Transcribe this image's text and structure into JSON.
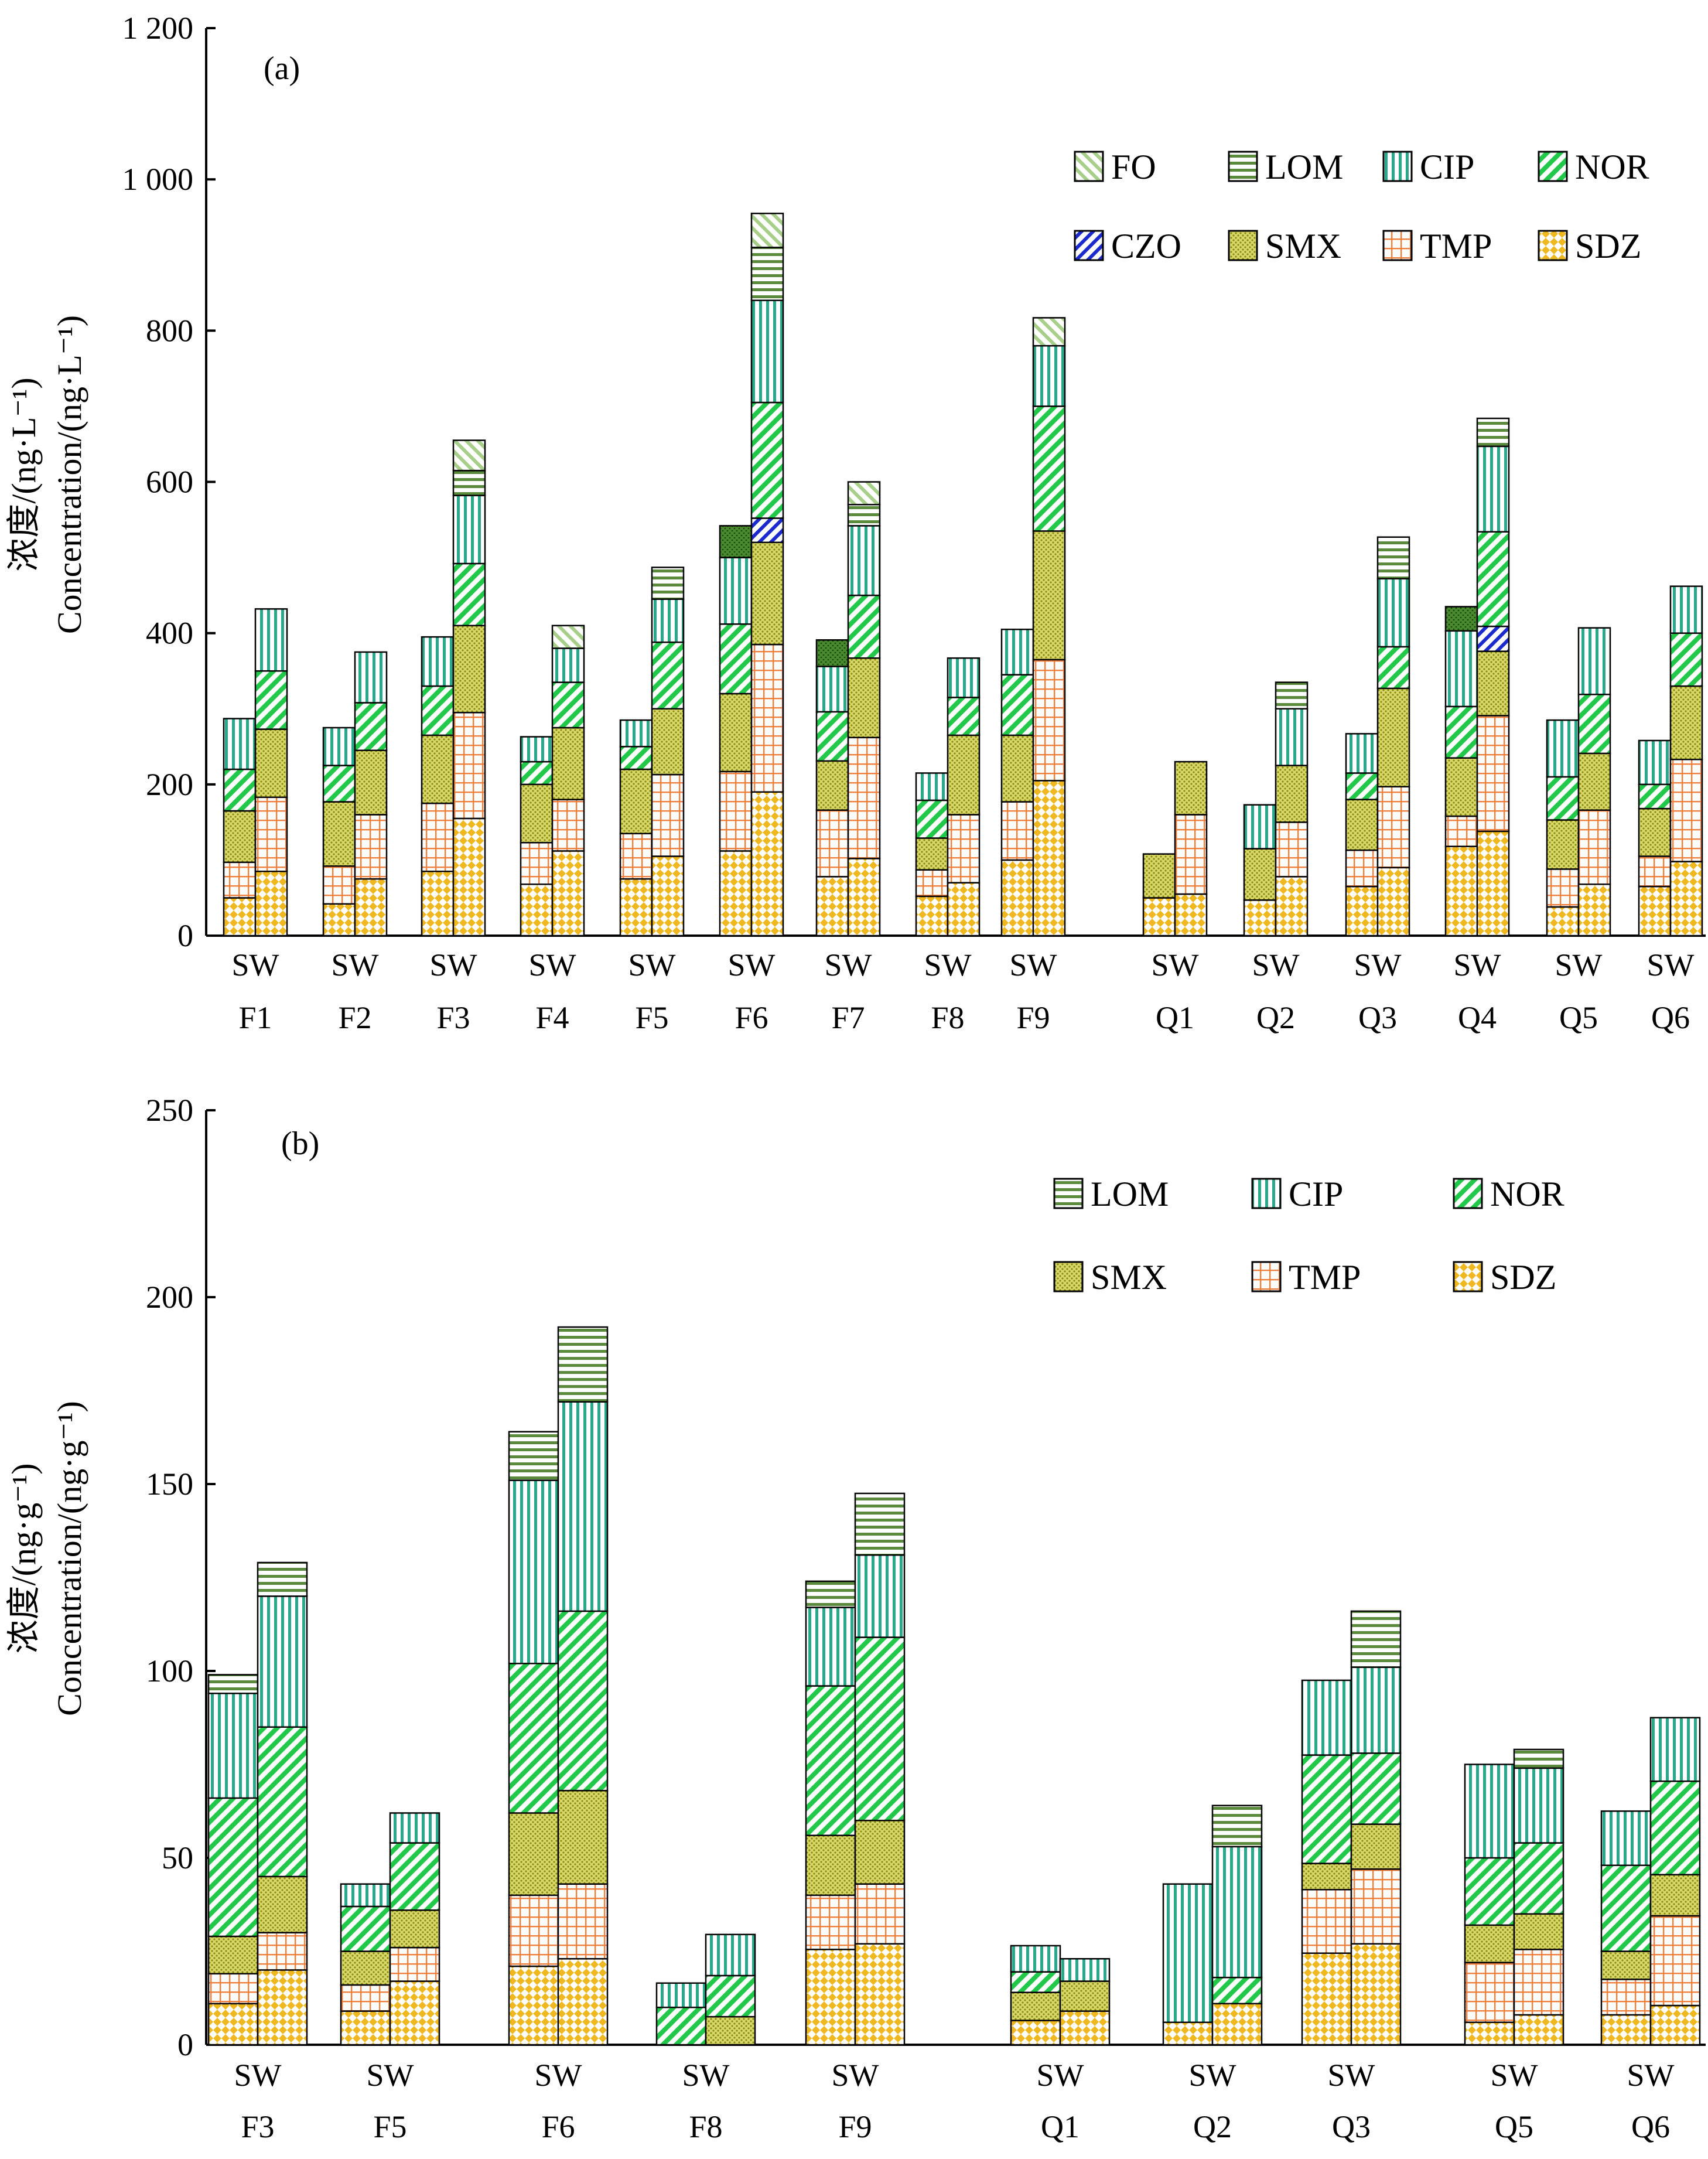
{
  "colors": {
    "FO": "#a8cf8a",
    "LOM": "#5a8a3c",
    "CIP": "#2aa88a",
    "NOR": "#22c84a",
    "CZO": "#1a2acc",
    "SMX": "#c8c840",
    "TMP": "#f08040",
    "SDZ": "#f0b820",
    "extra": "#4a8a30"
  },
  "chart_data": [
    {
      "panel": "(a)",
      "type": "bar",
      "stacked": true,
      "ylabel_cn": "浓度/(ng·L⁻¹)",
      "ylabel_en": "Concentration/(ng·L⁻¹)",
      "ylim": [
        0,
        1200
      ],
      "yticks": [
        0,
        200,
        400,
        600,
        800,
        1000,
        1200
      ],
      "ytick_labels": [
        "0",
        "200",
        "400",
        "600",
        "800",
        "1 000",
        "1 200"
      ],
      "grid": false,
      "legend_position": "top-right",
      "legend": [
        "FO",
        "LOM",
        "CIP",
        "NOR",
        "CZO",
        "SMX",
        "TMP",
        "SDZ"
      ],
      "stack_order": [
        "SDZ",
        "TMP",
        "SMX",
        "CZO",
        "NOR",
        "CIP",
        "extra",
        "LOM",
        "FO"
      ],
      "groups": [
        {
          "line1": "SW",
          "line2": "F1",
          "bars": [
            {
              "SDZ": 50,
              "TMP": 47,
              "SMX": 68,
              "NOR": 55,
              "CIP": 67
            },
            {
              "SDZ": 85,
              "TMP": 98,
              "SMX": 90,
              "NOR": 77,
              "CIP": 82
            }
          ]
        },
        {
          "line1": "SW",
          "line2": "F2",
          "bars": [
            {
              "SDZ": 42,
              "TMP": 50,
              "SMX": 85,
              "NOR": 48,
              "CIP": 50
            },
            {
              "SDZ": 75,
              "TMP": 85,
              "SMX": 85,
              "NOR": 63,
              "CIP": 67
            }
          ]
        },
        {
          "line1": "SW",
          "line2": "F3",
          "bars": [
            {
              "SDZ": 85,
              "TMP": 90,
              "SMX": 90,
              "NOR": 65,
              "CIP": 65
            },
            {
              "SDZ": 155,
              "TMP": 140,
              "SMX": 115,
              "NOR": 82,
              "CIP": 90,
              "LOM": 33,
              "FO": 40
            }
          ]
        },
        {
          "line1": "SW",
          "line2": "F4",
          "bars": [
            {
              "SDZ": 68,
              "TMP": 55,
              "SMX": 77,
              "NOR": 30,
              "CIP": 33
            },
            {
              "SDZ": 112,
              "TMP": 68,
              "SMX": 95,
              "NOR": 60,
              "CIP": 45,
              "FO": 30
            }
          ]
        },
        {
          "line1": "SW",
          "line2": "F5",
          "bars": [
            {
              "SDZ": 75,
              "TMP": 60,
              "SMX": 85,
              "NOR": 30,
              "CIP": 35
            },
            {
              "SDZ": 105,
              "TMP": 108,
              "SMX": 87,
              "NOR": 88,
              "CIP": 57,
              "LOM": 42
            }
          ]
        },
        {
          "line1": "SW",
          "line2": "F6",
          "bars": [
            {
              "SDZ": 112,
              "TMP": 105,
              "SMX": 103,
              "NOR": 92,
              "CIP": 88,
              "extra": 42
            },
            {
              "SDZ": 190,
              "TMP": 195,
              "SMX": 135,
              "CZO": 32,
              "NOR": 153,
              "CIP": 135,
              "LOM": 70,
              "FO": 45
            }
          ]
        },
        {
          "line1": "SW",
          "line2": "F7",
          "bars": [
            {
              "SDZ": 78,
              "TMP": 88,
              "SMX": 65,
              "NOR": 65,
              "CIP": 60,
              "extra": 35
            },
            {
              "SDZ": 102,
              "TMP": 160,
              "SMX": 105,
              "NOR": 83,
              "CIP": 92,
              "LOM": 28,
              "FO": 30
            }
          ]
        },
        {
          "line1": "SW",
          "line2": "F8",
          "bars": [
            {
              "SDZ": 52,
              "TMP": 35,
              "SMX": 42,
              "NOR": 50,
              "CIP": 36
            },
            {
              "SDZ": 70,
              "TMP": 90,
              "SMX": 105,
              "NOR": 50,
              "CIP": 52
            }
          ]
        },
        {
          "line1": "SW",
          "line2": "F9",
          "bars": [
            {
              "SDZ": 100,
              "TMP": 77,
              "SMX": 88,
              "NOR": 80,
              "CIP": 60
            },
            {
              "SDZ": 205,
              "TMP": 160,
              "SMX": 170,
              "NOR": 165,
              "CIP": 80,
              "FO": 37
            }
          ]
        },
        {
          "line1": "SW",
          "line2": "Q1",
          "bars": [
            {
              "SDZ": 50,
              "SMX": 58
            },
            {
              "SDZ": 55,
              "TMP": 105,
              "SMX": 70
            }
          ]
        },
        {
          "line1": "SW",
          "line2": "Q2",
          "bars": [
            {
              "SDZ": 47,
              "SMX": 68,
              "CIP": 58
            },
            {
              "SDZ": 78,
              "TMP": 72,
              "SMX": 75,
              "CIP": 75,
              "LOM": 35
            }
          ]
        },
        {
          "line1": "SW",
          "line2": "Q3",
          "bars": [
            {
              "SDZ": 65,
              "TMP": 48,
              "SMX": 67,
              "NOR": 35,
              "CIP": 52
            },
            {
              "SDZ": 90,
              "TMP": 107,
              "SMX": 130,
              "NOR": 55,
              "CIP": 90,
              "LOM": 55
            }
          ]
        },
        {
          "line1": "SW",
          "line2": "Q4",
          "bars": [
            {
              "SDZ": 118,
              "TMP": 40,
              "SMX": 77,
              "NOR": 68,
              "CIP": 100,
              "extra": 32
            },
            {
              "SDZ": 138,
              "TMP": 153,
              "SMX": 85,
              "CZO": 33,
              "NOR": 125,
              "CIP": 113,
              "LOM": 37
            }
          ]
        },
        {
          "line1": "SW",
          "line2": "Q5",
          "bars": [
            {
              "SDZ": 38,
              "TMP": 50,
              "SMX": 65,
              "NOR": 57,
              "CIP": 75
            },
            {
              "SDZ": 68,
              "TMP": 98,
              "SMX": 75,
              "NOR": 78,
              "CIP": 88
            }
          ]
        },
        {
          "line1": "SW",
          "line2": "Q6",
          "bars": [
            {
              "SDZ": 65,
              "TMP": 40,
              "SMX": 63,
              "NOR": 32,
              "CIP": 58
            },
            {
              "SDZ": 98,
              "TMP": 135,
              "SMX": 97,
              "NOR": 70,
              "CIP": 62
            }
          ]
        }
      ]
    },
    {
      "panel": "(b)",
      "type": "bar",
      "stacked": true,
      "ylabel_cn": "浓度/(ng·g⁻¹)",
      "ylabel_en": "Concentration/(ng·g⁻¹)",
      "ylim": [
        0,
        250
      ],
      "yticks": [
        0,
        50,
        100,
        150,
        200,
        250
      ],
      "ytick_labels": [
        "0",
        "50",
        "100",
        "150",
        "200",
        "250"
      ],
      "grid": false,
      "legend_position": "top-right",
      "legend": [
        "LOM",
        "CIP",
        "NOR",
        "SMX",
        "TMP",
        "SDZ"
      ],
      "stack_order": [
        "SDZ",
        "TMP",
        "SMX",
        "NOR",
        "CIP",
        "LOM"
      ],
      "groups": [
        {
          "line1": "SW",
          "line2": "F3",
          "bars": [
            {
              "SDZ": 11,
              "TMP": 8,
              "SMX": 10,
              "NOR": 37,
              "CIP": 28,
              "LOM": 5
            },
            {
              "SDZ": 20,
              "TMP": 10,
              "SMX": 15,
              "NOR": 40,
              "CIP": 35,
              "LOM": 9
            }
          ]
        },
        {
          "line1": "SW",
          "line2": "F5",
          "bars": [
            {
              "SDZ": 9,
              "TMP": 7,
              "SMX": 9,
              "NOR": 12,
              "CIP": 6
            },
            {
              "SDZ": 17,
              "TMP": 9,
              "SMX": 10,
              "NOR": 18,
              "CIP": 8
            }
          ]
        },
        {
          "line1": "SW",
          "line2": "F6",
          "bars": [
            {
              "SDZ": 21,
              "TMP": 19,
              "SMX": 22,
              "NOR": 40,
              "CIP": 49,
              "LOM": 13
            },
            {
              "SDZ": 23,
              "TMP": 20,
              "SMX": 25,
              "NOR": 48,
              "CIP": 56,
              "LOM": 20
            }
          ]
        },
        {
          "line1": "SW",
          "line2": "F8",
          "bars": [
            {
              "NOR": 10,
              "CIP": 6.5
            },
            {
              "SMX": 7.5,
              "NOR": 11,
              "CIP": 11
            }
          ]
        },
        {
          "line1": "SW",
          "line2": "F9",
          "bars": [
            {
              "SDZ": 25.5,
              "TMP": 14.5,
              "SMX": 16,
              "NOR": 40,
              "CIP": 21,
              "LOM": 7
            },
            {
              "SDZ": 27,
              "TMP": 16,
              "SMX": 17,
              "NOR": 49,
              "CIP": 22,
              "LOM": 16.5
            }
          ]
        },
        {
          "line1": "SW",
          "line2": "Q1",
          "bars": [
            {
              "SDZ": 6.5,
              "SMX": 7.5,
              "NOR": 5.5,
              "CIP": 7
            },
            {
              "SDZ": 9,
              "SMX": 8,
              "CIP": 6
            }
          ]
        },
        {
          "line1": "SW",
          "line2": "Q2",
          "bars": [
            {
              "SDZ": 6,
              "CIP": 37
            },
            {
              "SDZ": 11,
              "NOR": 7,
              "CIP": 35,
              "LOM": 11
            }
          ]
        },
        {
          "line1": "SW",
          "line2": "Q3",
          "bars": [
            {
              "SDZ": 24.5,
              "TMP": 17,
              "SMX": 7,
              "NOR": 29,
              "CIP": 20
            },
            {
              "SDZ": 27,
              "TMP": 20,
              "SMX": 12,
              "NOR": 19,
              "CIP": 23,
              "LOM": 15
            }
          ]
        },
        {
          "line1": "SW",
          "line2": "Q5",
          "bars": [
            {
              "SDZ": 6,
              "TMP": 16,
              "SMX": 10,
              "NOR": 18,
              "CIP": 25
            },
            {
              "SDZ": 8,
              "TMP": 17.5,
              "SMX": 9.5,
              "NOR": 19,
              "CIP": 20,
              "LOM": 5
            }
          ]
        },
        {
          "line1": "SW",
          "line2": "Q6",
          "bars": [
            {
              "SDZ": 8,
              "TMP": 9.5,
              "SMX": 7.5,
              "NOR": 23,
              "CIP": 14.5
            },
            {
              "SDZ": 10.5,
              "TMP": 24,
              "SMX": 11,
              "NOR": 25,
              "CIP": 17
            }
          ]
        }
      ]
    }
  ]
}
